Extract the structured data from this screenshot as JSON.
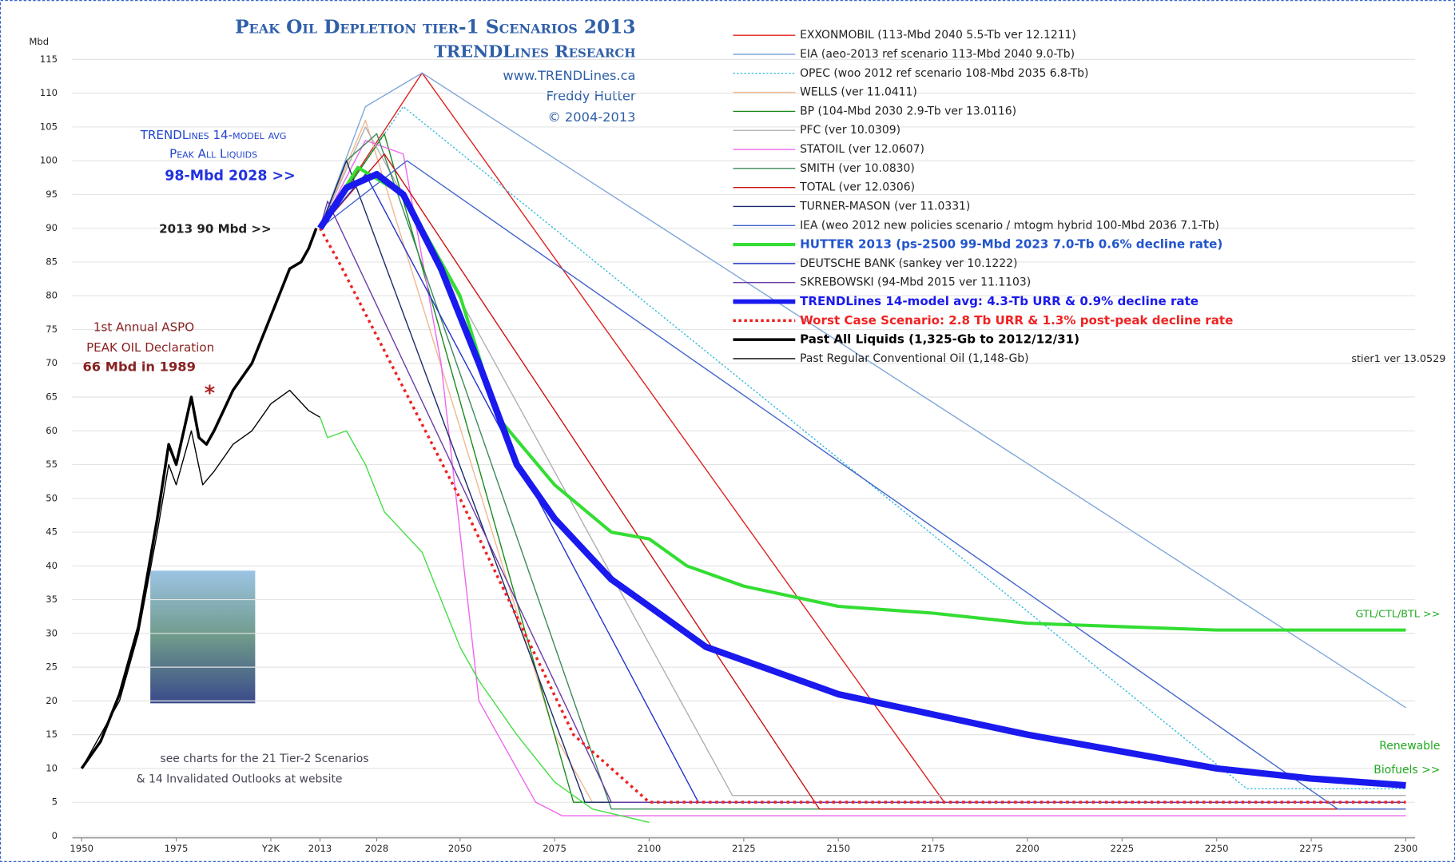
{
  "chart_data": {
    "type": "line",
    "title": "Peak Oil Depletion tier-1 Scenarios 2013",
    "subtitle": [
      "TRENDLines Research",
      "www.TRENDLines.ca",
      "Freddy Hutter",
      "© 2004-2013"
    ],
    "y_label": "Mbd",
    "xlim": [
      1950,
      2300
    ],
    "ylim": [
      0,
      115
    ],
    "xticks": [
      1950,
      1975,
      {
        "value": 2000,
        "label": "Y2K"
      },
      2013,
      2028,
      2050,
      2075,
      2100,
      2125,
      2150,
      2175,
      2200,
      2225,
      2250,
      2275,
      2300
    ],
    "yticks": [
      0,
      5,
      10,
      15,
      20,
      25,
      30,
      35,
      40,
      45,
      50,
      55,
      60,
      65,
      70,
      75,
      80,
      85,
      90,
      95,
      100,
      105,
      110,
      115
    ],
    "grid": true,
    "legend": "top-right",
    "series": [
      {
        "name": "EXXONMOBIL  (113-Mbd  2040  5.5-Tb  ver 12.1211)",
        "color": "#e02020",
        "width": 1.2,
        "x": [
          2013,
          2040,
          2178,
          2300
        ],
        "values": [
          90,
          113,
          5,
          5
        ]
      },
      {
        "name": "EIA  (aeo-2013 ref scenario 113-Mbd  2040  9.0-Tb)",
        "color": "#7fa6d8",
        "width": 1.2,
        "x": [
          2013,
          2025,
          2040,
          2300
        ],
        "values": [
          90,
          108,
          113,
          19
        ]
      },
      {
        "name": "OPEC  (woo 2012 ref scenario  108-Mbd  2035  6.8-Tb)",
        "color": "#33bbe0",
        "width": 1.2,
        "style": "dotted",
        "x": [
          2013,
          2035,
          2258,
          2300
        ],
        "values": [
          90,
          108,
          7,
          7
        ]
      },
      {
        "name": "WELLS  (ver 11.0411)",
        "color": "#f0b890",
        "width": 1.2,
        "x": [
          2013,
          2025,
          2075,
          2085,
          2300
        ],
        "values": [
          90,
          106,
          15,
          5,
          5
        ]
      },
      {
        "name": "BP  (104-Mbd  2030  2.9-Tb  ver 13.0116)",
        "color": "#1a8a1a",
        "width": 1.2,
        "x": [
          2013,
          2030,
          2080,
          2300
        ],
        "values": [
          90,
          104,
          5,
          5
        ]
      },
      {
        "name": "PFC  (ver 10.0309)",
        "color": "#b0b0b0",
        "width": 1.2,
        "x": [
          2013,
          2025,
          2122,
          2300
        ],
        "values": [
          90,
          105,
          6,
          6
        ]
      },
      {
        "name": "STATOIL  (ver 12.0607)",
        "color": "#ee66ee",
        "width": 1.2,
        "x": [
          2013,
          2025,
          2035,
          2045,
          2055,
          2070,
          2077,
          2300
        ],
        "values": [
          90,
          103,
          101,
          70,
          20,
          5,
          3,
          3
        ]
      },
      {
        "name": "SMITH  (ver 10.0830)",
        "color": "#3a8a5a",
        "width": 1.2,
        "x": [
          2013,
          2020,
          2028,
          2090,
          2300
        ],
        "values": [
          90,
          100,
          104,
          4,
          4
        ]
      },
      {
        "name": "TOTAL  (ver 12.0306)",
        "color": "#cc1111",
        "width": 1.2,
        "x": [
          2013,
          2030,
          2145,
          2300
        ],
        "values": [
          90,
          101,
          4,
          4
        ]
      },
      {
        "name": "TURNER-MASON  (ver 11.0331)",
        "color": "#1a2a6a",
        "width": 1.2,
        "x": [
          2013,
          2020,
          2083,
          2300
        ],
        "values": [
          90,
          100,
          5,
          5
        ]
      },
      {
        "name": "IEA  (weo 2012 new policies scenario / mtogm hybrid  100-Mbd  2036  7.1-Tb)",
        "color": "#4466cc",
        "width": 1.2,
        "x": [
          2013,
          2036,
          2282,
          2300
        ],
        "values": [
          90,
          100,
          4,
          4
        ]
      },
      {
        "name": "HUTTER 2013  (ps-2500  99-Mbd  2023  7.0-Tb  0.6% decline rate)",
        "color": "#33dd33",
        "width": 3.5,
        "x": [
          2013,
          2023,
          2035,
          2050,
          2060,
          2075,
          2090,
          2100,
          2110,
          2125,
          2150,
          2175,
          2200,
          2225,
          2250,
          2300
        ],
        "values": [
          90,
          99,
          95,
          80,
          62,
          52,
          45,
          44,
          40,
          37,
          34,
          33,
          31.5,
          31,
          30.5,
          30.5
        ]
      },
      {
        "name": "DEUTSCHE BANK  (sankey ver 10.1222)",
        "color": "#2233cc",
        "width": 1.2,
        "x": [
          2013,
          2025,
          2113,
          2300
        ],
        "values": [
          90,
          98,
          5,
          5
        ]
      },
      {
        "name": "SKREBOWSKI  (94-Mbd  2015  ver 11.1103)",
        "color": "#6a3aa8",
        "width": 1.2,
        "x": [
          2013,
          2015,
          2090,
          2300
        ],
        "values": [
          90,
          94,
          5,
          5
        ]
      },
      {
        "name": "TRENDLines 14-model avg:  4.3-Tb URR & 0.9% decline rate",
        "color": "#1a1aee",
        "width": 7,
        "x": [
          2013,
          2020,
          2028,
          2035,
          2045,
          2055,
          2065,
          2075,
          2090,
          2100,
          2115,
          2130,
          2150,
          2175,
          2200,
          2225,
          2250,
          2275,
          2300
        ],
        "values": [
          90,
          96,
          98,
          95,
          84,
          70,
          55,
          47,
          38,
          34,
          28,
          25,
          21,
          18,
          15,
          12.5,
          10,
          8.5,
          7.5
        ]
      },
      {
        "name": "Worst Case Scenario:  2.8 Tb URR & 1.3% post-peak decline rate",
        "color": "#ee2222",
        "width": 3,
        "style": "dotted",
        "x": [
          2013,
          2018,
          2050,
          2080,
          2100,
          2300
        ],
        "values": [
          90,
          85,
          50,
          15,
          5,
          5
        ]
      },
      {
        "name": "Past All Liquids  (1,325-Gb to 2012/12/31)",
        "color": "#000000",
        "width": 3,
        "x": [
          1950,
          1955,
          1960,
          1965,
          1970,
          1973,
          1975,
          1979,
          1981,
          1983,
          1985,
          1990,
          1995,
          2000,
          2005,
          2008,
          2010,
          2012
        ],
        "values": [
          10,
          14,
          21,
          31,
          47,
          58,
          55,
          65,
          59,
          58,
          60,
          66,
          70,
          77,
          84,
          85,
          87,
          90
        ]
      },
      {
        "name": "Past Regular Conventional Oil  (1,148-Gb)",
        "color": "#000000",
        "width": 1.2,
        "x": [
          1950,
          1960,
          1965,
          1970,
          1973,
          1975,
          1979,
          1982,
          1985,
          1990,
          1995,
          2000,
          2005,
          2010,
          2013
        ],
        "values": [
          10,
          20,
          30,
          45,
          55,
          52,
          60,
          52,
          54,
          58,
          60,
          64,
          66,
          63,
          62
        ]
      },
      {
        "color": "#44dd44",
        "width": 1.2,
        "x": [
          2013,
          2015,
          2020,
          2025,
          2030,
          2035,
          2040,
          2050,
          2055,
          2065,
          2075,
          2085,
          2100
        ],
        "values": [
          62,
          59,
          60,
          55,
          48,
          45,
          42,
          28,
          23,
          15,
          8,
          4,
          2
        ]
      }
    ],
    "annotations": [
      "TRENDLines 14-model avg",
      "Peak All Liquids",
      "98-Mbd  2028  >>",
      "2013  90 Mbd  >>",
      "1st Annual ASPO",
      "PEAK OIL Declaration",
      "66 Mbd in 1989",
      "*",
      "see charts for the 21 Tier-2 Scenarios",
      "& 14 Invalidated Outlooks at website",
      "GTL/CTL/BTL  >>",
      "Renewable",
      "Biofuels >>",
      "stier1 ver 13.0529"
    ]
  }
}
